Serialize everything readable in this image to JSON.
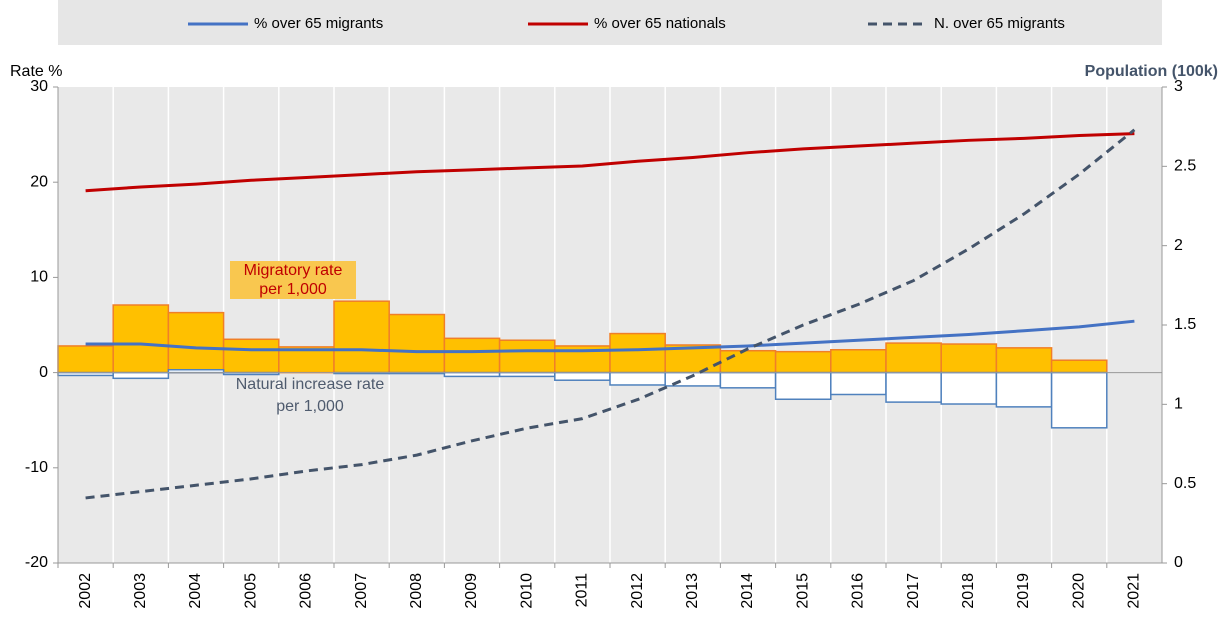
{
  "chart_data": {
    "type": "bar",
    "ylabel": "Rate %",
    "y2label": "Population (100k)",
    "categories": [
      "2002",
      "2003",
      "2004",
      "2005",
      "2006",
      "2007",
      "2008",
      "2009",
      "2010",
      "2011",
      "2012",
      "2013",
      "2014",
      "2015",
      "2016",
      "2017",
      "2018",
      "2019",
      "2020",
      "2021"
    ],
    "bars": [
      {
        "color": "#ffc000",
        "edgecolor": "#f07f28",
        "values": [
          2.8,
          7.1,
          6.3,
          3.5,
          2.7,
          7.5,
          6.1,
          3.6,
          3.4,
          2.8,
          4.1,
          2.9,
          2.3,
          2.2,
          2.4,
          3.1,
          3.0,
          2.6,
          1.3,
          null
        ]
      },
      {
        "color": "#ffffff",
        "edgecolor": "#4f81bd",
        "values": [
          -0.3,
          -0.6,
          0.3,
          -0.2,
          0,
          -0.1,
          -0.1,
          -0.4,
          -0.4,
          -0.8,
          -1.3,
          -1.4,
          -1.6,
          -2.8,
          -2.3,
          -3.1,
          -3.3,
          -3.6,
          -5.8,
          null
        ]
      }
    ],
    "series": [
      {
        "name": "% over 65 migrants",
        "type": "line",
        "color": "#4472c4",
        "dash": false,
        "values": [
          3.0,
          3.0,
          2.6,
          2.4,
          2.4,
          2.4,
          2.2,
          2.2,
          2.3,
          2.3,
          2.4,
          2.6,
          2.8,
          3.1,
          3.4,
          3.7,
          4.0,
          4.4,
          4.8,
          5.4
        ]
      },
      {
        "name": "% over 65 nationals",
        "type": "line",
        "color": "#c00000",
        "dash": false,
        "values": [
          19.1,
          19.5,
          19.8,
          20.2,
          20.5,
          20.8,
          21.1,
          21.3,
          21.5,
          21.7,
          22.2,
          22.6,
          23.1,
          23.5,
          23.8,
          24.1,
          24.4,
          24.6,
          24.9,
          25.1
        ]
      },
      {
        "name": "N. over 65 migrants",
        "type": "line",
        "color": "#44546a",
        "dash": true,
        "axis": "y2",
        "values": [
          0.41,
          0.45,
          0.49,
          0.53,
          0.58,
          0.62,
          0.68,
          0.77,
          0.85,
          0.91,
          1.03,
          1.18,
          1.35,
          1.5,
          1.63,
          1.78,
          1.98,
          2.2,
          2.45,
          2.73
        ]
      }
    ],
    "annotations": [
      {
        "lines": [
          "Migratory rate",
          "per 1,000"
        ],
        "color": "#c00000",
        "background": "#f9c74f"
      },
      {
        "lines": [
          "Natural increase rate",
          "per 1,000"
        ],
        "color": "#4f5b6e"
      }
    ],
    "ylim": [
      -20,
      30
    ],
    "yticks": [
      -20,
      -10,
      0,
      10,
      20,
      30
    ],
    "y2lim": [
      0,
      3
    ],
    "y2ticks": [
      0,
      0.5,
      1,
      1.5,
      2,
      2.5,
      3
    ]
  }
}
